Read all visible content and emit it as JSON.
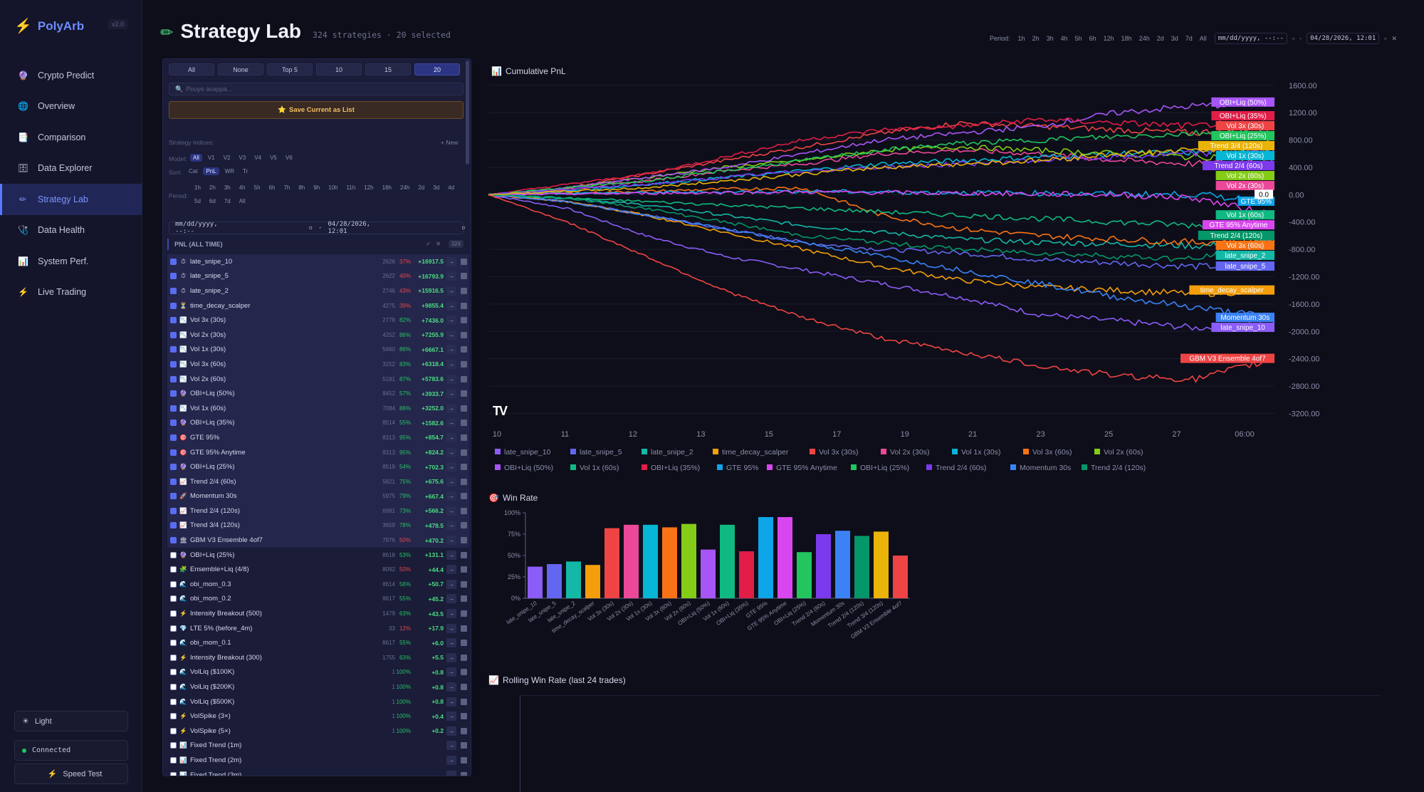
{
  "app": {
    "name": "PolyArb",
    "version": "v2.0"
  },
  "nav": [
    {
      "label": "Crypto Predict",
      "icon": "crypto-icon",
      "glyph": "🔮"
    },
    {
      "label": "Overview",
      "icon": "globe-icon",
      "glyph": "🌐"
    },
    {
      "label": "Comparison",
      "icon": "comparison-icon",
      "glyph": "📑"
    },
    {
      "label": "Data Explorer",
      "icon": "database-icon",
      "glyph": "🗄"
    },
    {
      "label": "Strategy Lab",
      "icon": "pencil-icon",
      "glyph": "✏"
    },
    {
      "label": "Data Health",
      "icon": "health-icon",
      "glyph": "🩺"
    },
    {
      "label": "System Perf.",
      "icon": "perf-icon",
      "glyph": "📊"
    },
    {
      "label": "Live Trading",
      "icon": "bolt-icon",
      "glyph": "⚡"
    }
  ],
  "sidebar_bottom": {
    "theme": "Light",
    "status": "Connected",
    "speed": "Speed Test"
  },
  "header": {
    "title": "Strategy Lab",
    "subtitle": "324 strategies · 20 selected"
  },
  "period": {
    "label": "Period:",
    "options": [
      "1h",
      "2h",
      "3h",
      "4h",
      "5h",
      "6h",
      "12h",
      "18h",
      "24h",
      "2d",
      "3d",
      "7d",
      "All"
    ],
    "start_placeholder": "mm/dd/yyyy, --:--",
    "end": "04/28/2026, 12:01"
  },
  "panel": {
    "select_buttons": [
      "All",
      "None",
      "Top 5",
      "10",
      "15",
      "20"
    ],
    "search_placeholder": "Pouye avappa...",
    "save_label": "Save Current as List",
    "indices_label": "Strategy Indices:",
    "new_label": "+ New",
    "model_label": "Model:",
    "models": [
      "All",
      "V1",
      "V2",
      "V3",
      "V4",
      "V5",
      "V6"
    ],
    "sort_label": "Sort:",
    "sorts": [
      "Cat",
      "PnL",
      "WR",
      "Tr"
    ],
    "period_label": "Period:",
    "periods1": [
      "1h",
      "2h",
      "3h",
      "4h",
      "5h",
      "6h",
      "7h",
      "8h",
      "9h",
      "10h",
      "11h",
      "12h",
      "18h",
      "24h",
      "2d",
      "3d",
      "4d"
    ],
    "periods2": [
      "5d",
      "6d",
      "7d",
      "All"
    ],
    "dt_start": "mm/dd/yyyy, --:--",
    "dt_end": "04/28/2026, 12:01",
    "group_header": "PNL (ALL TIME)",
    "group_count": "324",
    "rows": [
      {
        "name": "late_snipe_10",
        "icon": "⏱",
        "n": "2626",
        "wr": "37%",
        "pnl": "+16917.5",
        "checked": true,
        "red": true
      },
      {
        "name": "late_snipe_5",
        "icon": "⏱",
        "n": "2622",
        "wr": "40%",
        "pnl": "+16793.9",
        "checked": true,
        "red": true
      },
      {
        "name": "late_snipe_2",
        "icon": "⏱",
        "n": "2746",
        "wr": "43%",
        "pnl": "+15916.5",
        "checked": true,
        "red": true
      },
      {
        "name": "time_decay_scalper",
        "icon": "⏳",
        "n": "4275",
        "wr": "39%",
        "pnl": "+9855.4",
        "checked": true,
        "red": true
      },
      {
        "name": "Vol 3x (30s)",
        "icon": "📉",
        "n": "2778",
        "wr": "82%",
        "pnl": "+7436.0",
        "checked": true
      },
      {
        "name": "Vol 2x (30s)",
        "icon": "📉",
        "n": "4252",
        "wr": "86%",
        "pnl": "+7255.9",
        "checked": true
      },
      {
        "name": "Vol 1x (30s)",
        "icon": "📉",
        "n": "5660",
        "wr": "86%",
        "pnl": "+6667.1",
        "checked": true
      },
      {
        "name": "Vol 3x (60s)",
        "icon": "📉",
        "n": "3152",
        "wr": "83%",
        "pnl": "+6318.4",
        "checked": true
      },
      {
        "name": "Vol 2x (60s)",
        "icon": "📉",
        "n": "5191",
        "wr": "87%",
        "pnl": "+5783.6",
        "checked": true
      },
      {
        "name": "OBI+Liq (50%)",
        "icon": "🔮",
        "n": "8452",
        "wr": "57%",
        "pnl": "+3933.7",
        "checked": true
      },
      {
        "name": "Vol 1x (60s)",
        "icon": "📉",
        "n": "7084",
        "wr": "86%",
        "pnl": "+3252.0",
        "checked": true
      },
      {
        "name": "OBI+Liq (35%)",
        "icon": "🔮",
        "n": "8514",
        "wr": "55%",
        "pnl": "+1582.6",
        "checked": true
      },
      {
        "name": "GTE 95%",
        "icon": "🎯",
        "n": "8313",
        "wr": "95%",
        "pnl": "+854.7",
        "checked": true
      },
      {
        "name": "GTE 95% Anytime",
        "icon": "🎯",
        "n": "8313",
        "wr": "95%",
        "pnl": "+824.2",
        "checked": true
      },
      {
        "name": "OBI+Liq (25%)",
        "icon": "🔮",
        "n": "8519",
        "wr": "54%",
        "pnl": "+702.3",
        "checked": true
      },
      {
        "name": "Trend 2/4 (60s)",
        "icon": "📈",
        "n": "5821",
        "wr": "75%",
        "pnl": "+675.6",
        "checked": true
      },
      {
        "name": "Momentum 30s",
        "icon": "🚀",
        "n": "5975",
        "wr": "79%",
        "pnl": "+667.4",
        "checked": true
      },
      {
        "name": "Trend 2/4 (120s)",
        "icon": "📈",
        "n": "6991",
        "wr": "73%",
        "pnl": "+566.2",
        "checked": true
      },
      {
        "name": "Trend 3/4 (120s)",
        "icon": "📈",
        "n": "3659",
        "wr": "78%",
        "pnl": "+478.5",
        "checked": true
      },
      {
        "name": "GBM V3 Ensemble 4of7",
        "icon": "🏛",
        "n": "7976",
        "wr": "50%",
        "pnl": "+470.2",
        "checked": true,
        "red": true
      },
      {
        "name": "OBI+Liq (25%)",
        "icon": "🔮",
        "n": "8618",
        "wr": "53%",
        "pnl": "+131.1",
        "checked": false
      },
      {
        "name": "Ensemble+Liq (4/8)",
        "icon": "🧩",
        "n": "8092",
        "wr": "50%",
        "pnl": "+44.4",
        "checked": false,
        "red": true
      },
      {
        "name": "obi_mom_0.3",
        "icon": "🌊",
        "n": "8614",
        "wr": "56%",
        "pnl": "+50.7",
        "checked": false
      },
      {
        "name": "obi_mom_0.2",
        "icon": "🌊",
        "n": "8617",
        "wr": "55%",
        "pnl": "+45.2",
        "checked": false
      },
      {
        "name": "Intensity Breakout (500)",
        "icon": "⚡",
        "n": "1479",
        "wr": "63%",
        "pnl": "+43.5",
        "checked": false
      },
      {
        "name": "LTE 5% (before_4m)",
        "icon": "💎",
        "n": "33",
        "wr": "12%",
        "pnl": "+17.9",
        "checked": false,
        "red": true
      },
      {
        "name": "obi_mom_0.1",
        "icon": "🌊",
        "n": "8617",
        "wr": "55%",
        "pnl": "+6.0",
        "checked": false
      },
      {
        "name": "Intensity Breakout (300)",
        "icon": "⚡",
        "n": "1755",
        "wr": "63%",
        "pnl": "+5.5",
        "checked": false
      },
      {
        "name": "VolLiq ($100K)",
        "icon": "🌊",
        "n": "1",
        "wr": "100%",
        "pnl": "+0.8",
        "checked": false
      },
      {
        "name": "VolLiq ($200K)",
        "icon": "🌊",
        "n": "1",
        "wr": "100%",
        "pnl": "+0.8",
        "checked": false
      },
      {
        "name": "VolLiq ($500K)",
        "icon": "🌊",
        "n": "1",
        "wr": "100%",
        "pnl": "+0.8",
        "checked": false
      },
      {
        "name": "VolSpike (3×)",
        "icon": "⚡",
        "n": "1",
        "wr": "100%",
        "pnl": "+0.4",
        "checked": false
      },
      {
        "name": "VolSpike (5×)",
        "icon": "⚡",
        "n": "1",
        "wr": "100%",
        "pnl": "+0.2",
        "checked": false
      },
      {
        "name": "Fixed Trend (1m)",
        "icon": "📊",
        "n": "",
        "wr": "",
        "pnl": "",
        "checked": false
      },
      {
        "name": "Fixed Trend (2m)",
        "icon": "📊",
        "n": "",
        "wr": "",
        "pnl": "",
        "checked": false
      },
      {
        "name": "Fixed Trend (3m)",
        "icon": "📊",
        "n": "",
        "wr": "",
        "pnl": "",
        "checked": false
      }
    ]
  },
  "charts": {
    "pnl_title": "Cumulative PnL",
    "winrate_title": "Win Rate",
    "rolling_title": "Rolling Win Rate (last 24 trades)",
    "zero_label": "0.0"
  },
  "chart_data": [
    {
      "type": "line",
      "title": "Cumulative PnL",
      "x_ticks": [
        "10",
        "11",
        "12",
        "13",
        "15",
        "17",
        "19",
        "21",
        "23",
        "25",
        "27",
        "06:00"
      ],
      "y_ticks": [
        "1600.00",
        "1200.00",
        "800.00",
        "400.00",
        "0.00",
        "-400.00",
        "-800.00",
        "-1200.00",
        "-1600.00",
        "-2000.00",
        "-2400.00",
        "-2800.00",
        "-3200.00"
      ],
      "ylim": [
        -3300,
        1650
      ],
      "series": [
        {
          "name": "late_snipe_10",
          "color": "#8b5cf6",
          "values": [
            0,
            -200,
            -600,
            -900,
            -1100,
            -1300,
            -1500,
            -1750,
            -1850,
            -1950,
            -1900
          ]
        },
        {
          "name": "late_snipe_5",
          "color": "#6366f1",
          "values": [
            0,
            -100,
            -300,
            -500,
            -700,
            -800,
            -850,
            -950,
            -1000,
            -1050,
            -1050
          ]
        },
        {
          "name": "late_snipe_2",
          "color": "#14b8a6",
          "values": [
            0,
            -50,
            -150,
            -300,
            -450,
            -550,
            -650,
            -700,
            -720,
            -750,
            -700
          ]
        },
        {
          "name": "time_decay_scalper",
          "color": "#f59e0b",
          "values": [
            0,
            -100,
            -300,
            -550,
            -800,
            -1050,
            -1250,
            -1350,
            -1400,
            -1450,
            -1400
          ]
        },
        {
          "name": "Vol 3x (30s)",
          "color": "#ef4444",
          "values": [
            0,
            100,
            300,
            500,
            700,
            900,
            1050,
            1000,
            950,
            900,
            1050
          ]
        },
        {
          "name": "Vol 2x (30s)",
          "color": "#ec4899",
          "values": [
            0,
            80,
            200,
            350,
            450,
            600,
            650,
            600,
            500,
            450,
            520
          ]
        },
        {
          "name": "Vol 1x (30s)",
          "color": "#06b6d4",
          "values": [
            0,
            50,
            150,
            250,
            350,
            450,
            500,
            550,
            600,
            620,
            680
          ]
        },
        {
          "name": "Vol 3x (60s)",
          "color": "#f97316",
          "values": [
            0,
            20,
            50,
            80,
            100,
            -300,
            -500,
            -600,
            -650,
            -700,
            -650
          ]
        },
        {
          "name": "Vol 2x (60s)",
          "color": "#84cc16",
          "values": [
            0,
            100,
            250,
            400,
            500,
            650,
            700,
            650,
            600,
            550,
            600
          ]
        },
        {
          "name": "OBI+Liq (50%)",
          "color": "#a855f7",
          "values": [
            0,
            100,
            250,
            400,
            600,
            800,
            900,
            1000,
            1200,
            1300,
            1350
          ]
        },
        {
          "name": "Vol 1x (60s)",
          "color": "#10b981",
          "values": [
            0,
            -50,
            -100,
            -150,
            -200,
            -250,
            -300,
            -350,
            -400,
            -450,
            -300
          ]
        },
        {
          "name": "OBI+Liq (35%)",
          "color": "#e11d48",
          "values": [
            0,
            150,
            300,
            550,
            800,
            950,
            1000,
            1100,
            1050,
            1000,
            1150
          ]
        },
        {
          "name": "GTE 95%",
          "color": "#0ea5e9",
          "values": [
            0,
            20,
            30,
            40,
            50,
            40,
            30,
            20,
            10,
            0,
            -100
          ]
        },
        {
          "name": "GTE 95% Anytime",
          "color": "#d946ef",
          "values": [
            0,
            10,
            20,
            30,
            40,
            30,
            20,
            10,
            0,
            -50,
            -300
          ]
        },
        {
          "name": "OBI+Liq (25%)",
          "color": "#22c55e",
          "values": [
            0,
            100,
            200,
            350,
            500,
            650,
            750,
            800,
            850,
            900,
            950
          ]
        },
        {
          "name": "Trend 2/4 (60s)",
          "color": "#7c3aed",
          "values": [
            0,
            80,
            150,
            250,
            350,
            400,
            450,
            500,
            550,
            600,
            650
          ]
        },
        {
          "name": "Momentum 30s",
          "color": "#3b82f6",
          "values": [
            0,
            -100,
            -300,
            -500,
            -700,
            -900,
            -1100,
            -1300,
            -1500,
            -1650,
            -1800
          ]
        },
        {
          "name": "Trend 2/4 (120s)",
          "color": "#059669",
          "values": [
            0,
            -50,
            -200,
            -400,
            -600,
            -700,
            -800,
            -850,
            -900,
            -950,
            -600
          ]
        },
        {
          "name": "Trend 3/4 (120s)",
          "color": "#eab308",
          "values": [
            0,
            50,
            100,
            200,
            300,
            400,
            450,
            500,
            600,
            650,
            750
          ]
        },
        {
          "name": "GBM V3 Ensemble 4of7",
          "color": "#ef4444",
          "values": [
            0,
            -400,
            -900,
            -1400,
            -1800,
            -2100,
            -2300,
            -2500,
            -2650,
            -2700,
            -2400
          ]
        }
      ]
    },
    {
      "type": "bar",
      "title": "Win Rate",
      "y_ticks": [
        "100%",
        "75%",
        "50%",
        "25%",
        "0%"
      ],
      "ylim": [
        0,
        100
      ],
      "categories": [
        "late_snipe_10",
        "late_snipe_5",
        "late_snipe_2",
        "time_decay_scalper",
        "Vol 3x (30s)",
        "Vol 2x (30s)",
        "Vol 1x (30s)",
        "Vol 3x (60s)",
        "Vol 2x (60s)",
        "OBI+Liq (50%)",
        "Vol 1x (60s)",
        "OBI+Liq (35%)",
        "GTE 95%",
        "GTE 95% Anytime",
        "OBI+Liq (25%)",
        "Trend 2/4 (60s)",
        "Momentum 30s",
        "Trend 2/4 (120s)",
        "Trend 3/4 (120s)",
        "GBM V3 Ensemble 4of7"
      ],
      "values": [
        37,
        40,
        43,
        39,
        82,
        86,
        86,
        83,
        87,
        57,
        86,
        55,
        95,
        95,
        54,
        75,
        79,
        73,
        78,
        50
      ],
      "colors": [
        "#8b5cf6",
        "#6366f1",
        "#14b8a6",
        "#f59e0b",
        "#ef4444",
        "#ec4899",
        "#06b6d4",
        "#f97316",
        "#84cc16",
        "#a855f7",
        "#10b981",
        "#e11d48",
        "#0ea5e9",
        "#d946ef",
        "#22c55e",
        "#7c3aed",
        "#3b82f6",
        "#059669",
        "#eab308",
        "#ef4444"
      ]
    }
  ]
}
